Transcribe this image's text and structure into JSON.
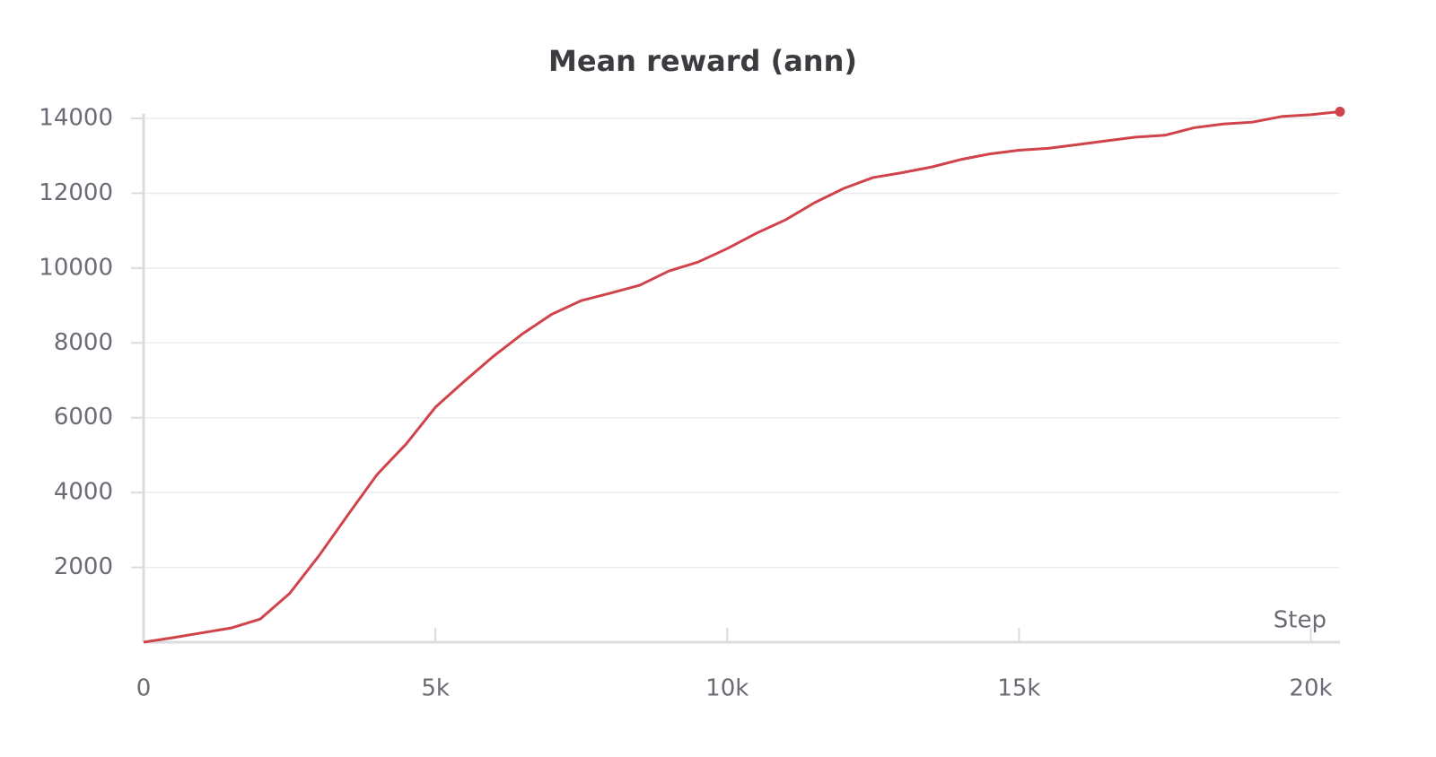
{
  "chart_data": {
    "type": "line",
    "title": "Mean reward (ann)",
    "x_label": "Step",
    "x": [
      0,
      500,
      1000,
      1500,
      2000,
      2500,
      3000,
      3500,
      4000,
      4500,
      5000,
      5500,
      6000,
      6500,
      7000,
      7500,
      8000,
      8500,
      9000,
      9500,
      10000,
      10500,
      11000,
      11500,
      12000,
      12500,
      13000,
      13500,
      14000,
      14500,
      15000,
      15500,
      16000,
      16500,
      17000,
      17500,
      18000,
      18500,
      19000,
      19500,
      20000,
      20500
    ],
    "values": [
      0,
      120,
      250,
      380,
      620,
      1300,
      2300,
      3400,
      4480,
      5300,
      6280,
      6980,
      7650,
      8250,
      8770,
      9130,
      9330,
      9540,
      9920,
      10160,
      10520,
      10930,
      11290,
      11750,
      12130,
      12420,
      12550,
      12700,
      12900,
      13050,
      13150,
      13200,
      13300,
      13400,
      13500,
      13550,
      13750,
      13850,
      13900,
      14050,
      14100,
      14180
    ],
    "color": "#d1434b",
    "xlim": [
      0,
      20500
    ],
    "ylim": [
      0,
      14300
    ],
    "xticks": [
      0,
      {
        "value": 5000,
        "label": "5k"
      },
      {
        "value": 10000,
        "label": "10k"
      },
      {
        "value": 15000,
        "label": "15k"
      },
      {
        "value": 20000,
        "label": "20k"
      }
    ],
    "yticks": [
      2000,
      4000,
      6000,
      8000,
      10000,
      12000,
      14000
    ],
    "grid": true
  }
}
